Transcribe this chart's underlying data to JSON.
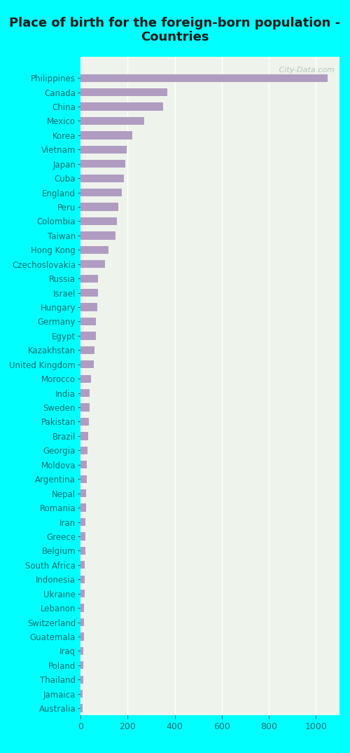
{
  "title": "Place of birth for the foreign-born population -\nCountries",
  "categories": [
    "Philippines",
    "Canada",
    "China",
    "Mexico",
    "Korea",
    "Vietnam",
    "Japan",
    "Cuba",
    "England",
    "Peru",
    "Colombia",
    "Taiwan",
    "Hong Kong",
    "Czechoslovakia",
    "Russia",
    "Israel",
    "Hungary",
    "Germany",
    "Egypt",
    "Kazakhstan",
    "United Kingdom",
    "Morocco",
    "India",
    "Sweden",
    "Pakistan",
    "Brazil",
    "Georgia",
    "Moldova",
    "Argentina",
    "Nepal",
    "Romania",
    "Iran",
    "Greece",
    "Belgium",
    "South Africa",
    "Indonesia",
    "Ukraine",
    "Lebanon",
    "Switzerland",
    "Guatemala",
    "Iraq",
    "Poland",
    "Thailand",
    "Jamaica",
    "Australia"
  ],
  "values": [
    1050,
    370,
    350,
    270,
    220,
    195,
    190,
    185,
    175,
    160,
    155,
    150,
    120,
    105,
    75,
    75,
    70,
    65,
    65,
    60,
    55,
    45,
    40,
    38,
    35,
    33,
    30,
    28,
    27,
    25,
    24,
    22,
    20,
    20,
    18,
    18,
    17,
    16,
    15,
    14,
    13,
    12,
    11,
    10,
    9
  ],
  "bar_color": "#b09cc0",
  "background_color": "#00ffff",
  "plot_bg_color": "#eef4ec",
  "title_color": "#1a1a1a",
  "label_color": "#007070",
  "tick_color": "#007070",
  "xlim": [
    0,
    1100
  ],
  "xticks": [
    0,
    200,
    400,
    600,
    800,
    1000
  ],
  "title_fontsize": 13,
  "label_fontsize": 8.5,
  "tick_fontsize": 9,
  "watermark": "   City-Data.com"
}
